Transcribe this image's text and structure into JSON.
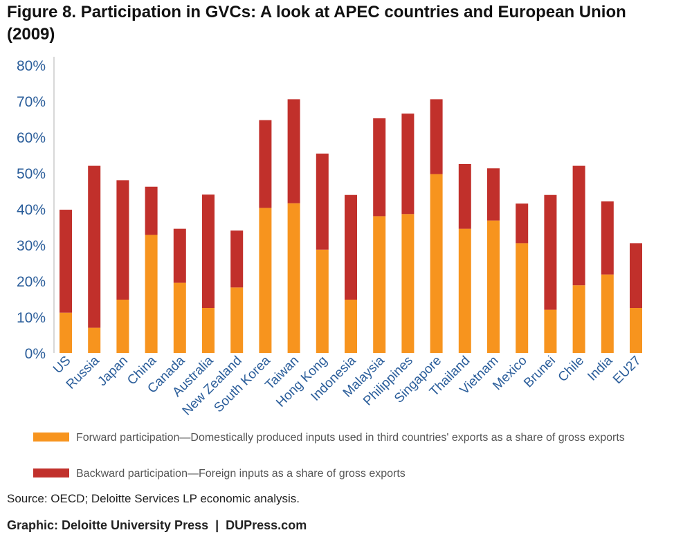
{
  "title": "Figure 8. Participation in GVCs: A look at APEC countries and European Union (2009)",
  "colors": {
    "forward": "#f7941e",
    "backward": "#c1302b",
    "axis": "#cccccc",
    "label": "#2a5d9a"
  },
  "chart_data": {
    "type": "bar",
    "stacked": true,
    "categories": [
      "US",
      "Russia",
      "Japan",
      "China",
      "Canada",
      "Australia",
      "New Zealand",
      "South Korea",
      "Taiwan",
      "Hong Kong",
      "Indonesia",
      "Malaysia",
      "Philippines",
      "Singapore",
      "Thailand",
      "Vietnam",
      "Mexico",
      "Brunei",
      "Chile",
      "India",
      "EU27"
    ],
    "series": [
      {
        "name": "Forward participation—Domestically produced inputs used in third countries' exports as a share of gross exports",
        "values": [
          11.2,
          7.0,
          14.8,
          32.8,
          19.5,
          12.5,
          18.2,
          40.3,
          41.6,
          28.7,
          14.8,
          38.0,
          38.6,
          49.7,
          34.5,
          36.8,
          30.5,
          12.0,
          18.8,
          21.8,
          12.5
        ]
      },
      {
        "name": "Backward participation—Foreign inputs as a share of gross exports",
        "values": [
          28.6,
          45.0,
          33.2,
          13.4,
          15.0,
          31.5,
          15.8,
          24.4,
          28.9,
          26.7,
          29.1,
          27.2,
          27.9,
          20.8,
          18.0,
          14.5,
          11.0,
          31.9,
          33.2,
          20.3,
          18.0
        ]
      }
    ],
    "yticks": [
      "0%",
      "10%",
      "20%",
      "30%",
      "40%",
      "50%",
      "60%",
      "70%",
      "80%"
    ],
    "ylim": [
      0,
      80
    ],
    "grid": false,
    "legend_position": "bottom"
  },
  "legend": {
    "forward": "Forward participation—Domestically produced inputs used in third countries' exports as a share of gross exports",
    "backward": "Backward participation—Foreign inputs as a share of gross exports"
  },
  "source": "Source: OECD; Deloitte Services LP economic analysis.",
  "credit": "Graphic: Deloitte University Press  |  DUPress.com"
}
